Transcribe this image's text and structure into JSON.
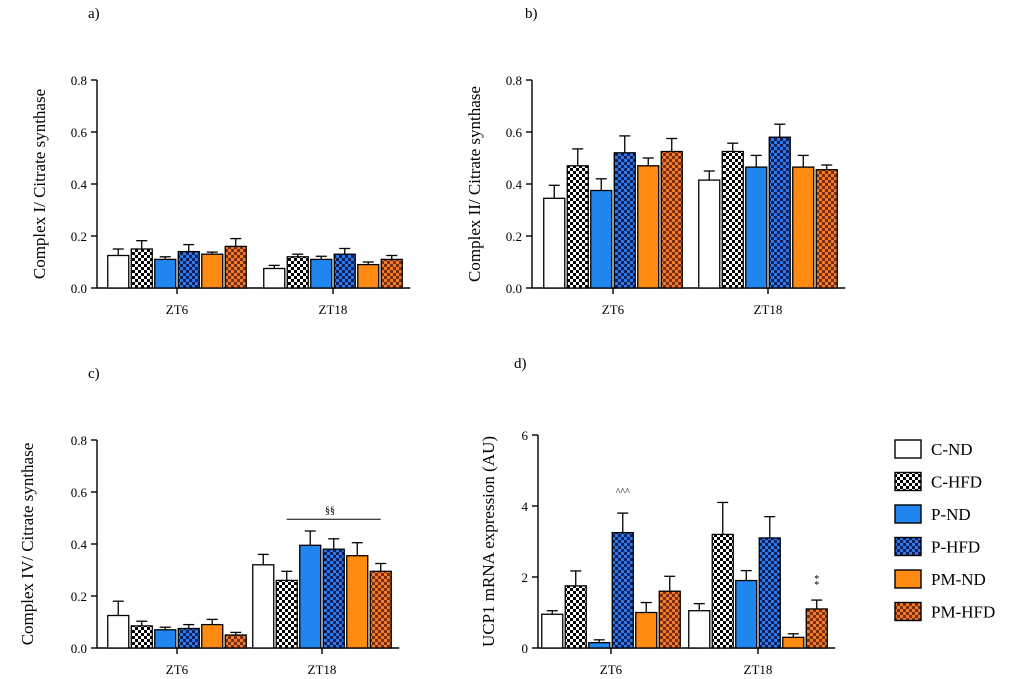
{
  "colors": {
    "C-ND": "#ffffff",
    "C-HFD": "checker-black-white",
    "P-ND": "#1f86f0",
    "P-HFD": "checker-blue-darkblue",
    "PM-ND": "#ff8a12",
    "PM-HFD": "checker-orange-brown"
  },
  "legend": {
    "entries": [
      "C-ND",
      "C-HFD",
      "P-ND",
      "P-HFD",
      "PM-ND",
      "PM-HFD"
    ],
    "placement": "right"
  },
  "chart_data": [
    {
      "panel_label": "a)",
      "type": "bar",
      "ylabel": "Complex I/ Citrate synthase",
      "xlabel": "",
      "ylim": [
        0,
        0.8
      ],
      "yticks": [
        "0.0",
        "0.2",
        "0.4",
        "0.6",
        "0.8"
      ],
      "categories": [
        "ZT6",
        "ZT18"
      ],
      "series": [
        {
          "name": "C-ND",
          "values": [
            0.125,
            0.075
          ],
          "errors": [
            0.025,
            0.012
          ]
        },
        {
          "name": "C-HFD",
          "values": [
            0.15,
            0.12
          ],
          "errors": [
            0.032,
            0.01
          ]
        },
        {
          "name": "P-ND",
          "values": [
            0.11,
            0.11
          ],
          "errors": [
            0.01,
            0.012
          ]
        },
        {
          "name": "P-HFD",
          "values": [
            0.14,
            0.13
          ],
          "errors": [
            0.027,
            0.022
          ]
        },
        {
          "name": "PM-ND",
          "values": [
            0.13,
            0.09
          ],
          "errors": [
            0.008,
            0.01
          ]
        },
        {
          "name": "PM-HFD",
          "values": [
            0.16,
            0.11
          ],
          "errors": [
            0.03,
            0.015
          ]
        }
      ],
      "annotations": []
    },
    {
      "panel_label": "b)",
      "type": "bar",
      "ylabel": "Complex II/ Citrate synthase",
      "xlabel": "",
      "ylim": [
        0,
        0.8
      ],
      "yticks": [
        "0.0",
        "0.2",
        "0.4",
        "0.6",
        "0.8"
      ],
      "categories": [
        "ZT6",
        "ZT18"
      ],
      "series": [
        {
          "name": "C-ND",
          "values": [
            0.345,
            0.415
          ],
          "errors": [
            0.05,
            0.035
          ]
        },
        {
          "name": "C-HFD",
          "values": [
            0.47,
            0.525
          ],
          "errors": [
            0.065,
            0.032
          ]
        },
        {
          "name": "P-ND",
          "values": [
            0.375,
            0.465
          ],
          "errors": [
            0.045,
            0.045
          ]
        },
        {
          "name": "P-HFD",
          "values": [
            0.52,
            0.58
          ],
          "errors": [
            0.065,
            0.05
          ]
        },
        {
          "name": "PM-ND",
          "values": [
            0.47,
            0.465
          ],
          "errors": [
            0.03,
            0.045
          ]
        },
        {
          "name": "PM-HFD",
          "values": [
            0.525,
            0.455
          ],
          "errors": [
            0.05,
            0.018
          ]
        }
      ],
      "annotations": []
    },
    {
      "panel_label": "c)",
      "type": "bar",
      "ylabel": "Complex IV/ Citrate synthase",
      "xlabel": "",
      "ylim": [
        0,
        0.8
      ],
      "yticks": [
        "0.0",
        "0.2",
        "0.4",
        "0.6",
        "0.8"
      ],
      "categories": [
        "ZT6",
        "ZT18"
      ],
      "series": [
        {
          "name": "C-ND",
          "values": [
            0.125,
            0.32
          ],
          "errors": [
            0.055,
            0.04
          ]
        },
        {
          "name": "C-HFD",
          "values": [
            0.085,
            0.26
          ],
          "errors": [
            0.018,
            0.035
          ]
        },
        {
          "name": "P-ND",
          "values": [
            0.07,
            0.395
          ],
          "errors": [
            0.01,
            0.055
          ]
        },
        {
          "name": "P-HFD",
          "values": [
            0.075,
            0.38
          ],
          "errors": [
            0.015,
            0.04
          ]
        },
        {
          "name": "PM-ND",
          "values": [
            0.09,
            0.355
          ],
          "errors": [
            0.02,
            0.05
          ]
        },
        {
          "name": "PM-HFD",
          "values": [
            0.05,
            0.295
          ],
          "errors": [
            0.01,
            0.03
          ]
        }
      ],
      "annotations": [
        {
          "text": "§§",
          "category": "ZT18",
          "type": "bracket",
          "y": 0.495
        }
      ]
    },
    {
      "panel_label": "d)",
      "type": "bar",
      "ylabel": "UCP1 mRNA expression (AU)",
      "xlabel": "",
      "ylim": [
        0,
        6
      ],
      "yticks": [
        "0",
        "2",
        "4",
        "6"
      ],
      "categories": [
        "ZT6",
        "ZT18"
      ],
      "series": [
        {
          "name": "C-ND",
          "values": [
            0.95,
            1.05
          ],
          "errors": [
            0.1,
            0.2
          ]
        },
        {
          "name": "C-HFD",
          "values": [
            1.75,
            3.2
          ],
          "errors": [
            0.42,
            0.9
          ]
        },
        {
          "name": "P-ND",
          "values": [
            0.15,
            1.9
          ],
          "errors": [
            0.08,
            0.28
          ]
        },
        {
          "name": "P-HFD",
          "values": [
            3.25,
            3.1
          ],
          "errors": [
            0.55,
            0.6
          ]
        },
        {
          "name": "PM-ND",
          "values": [
            1.0,
            0.3
          ],
          "errors": [
            0.28,
            0.1
          ]
        },
        {
          "name": "PM-HFD",
          "values": [
            1.6,
            1.1
          ],
          "errors": [
            0.42,
            0.25
          ]
        }
      ],
      "annotations": [
        {
          "text": "^^^",
          "category": "ZT6",
          "series": "P-HFD",
          "type": "above-bar"
        },
        {
          "text": "*",
          "category": "ZT18",
          "series": "PM-HFD",
          "type": "above-bar"
        },
        {
          "text": "*",
          "category": "ZT18",
          "series": "PM-HFD",
          "type": "above-bar"
        }
      ]
    }
  ]
}
